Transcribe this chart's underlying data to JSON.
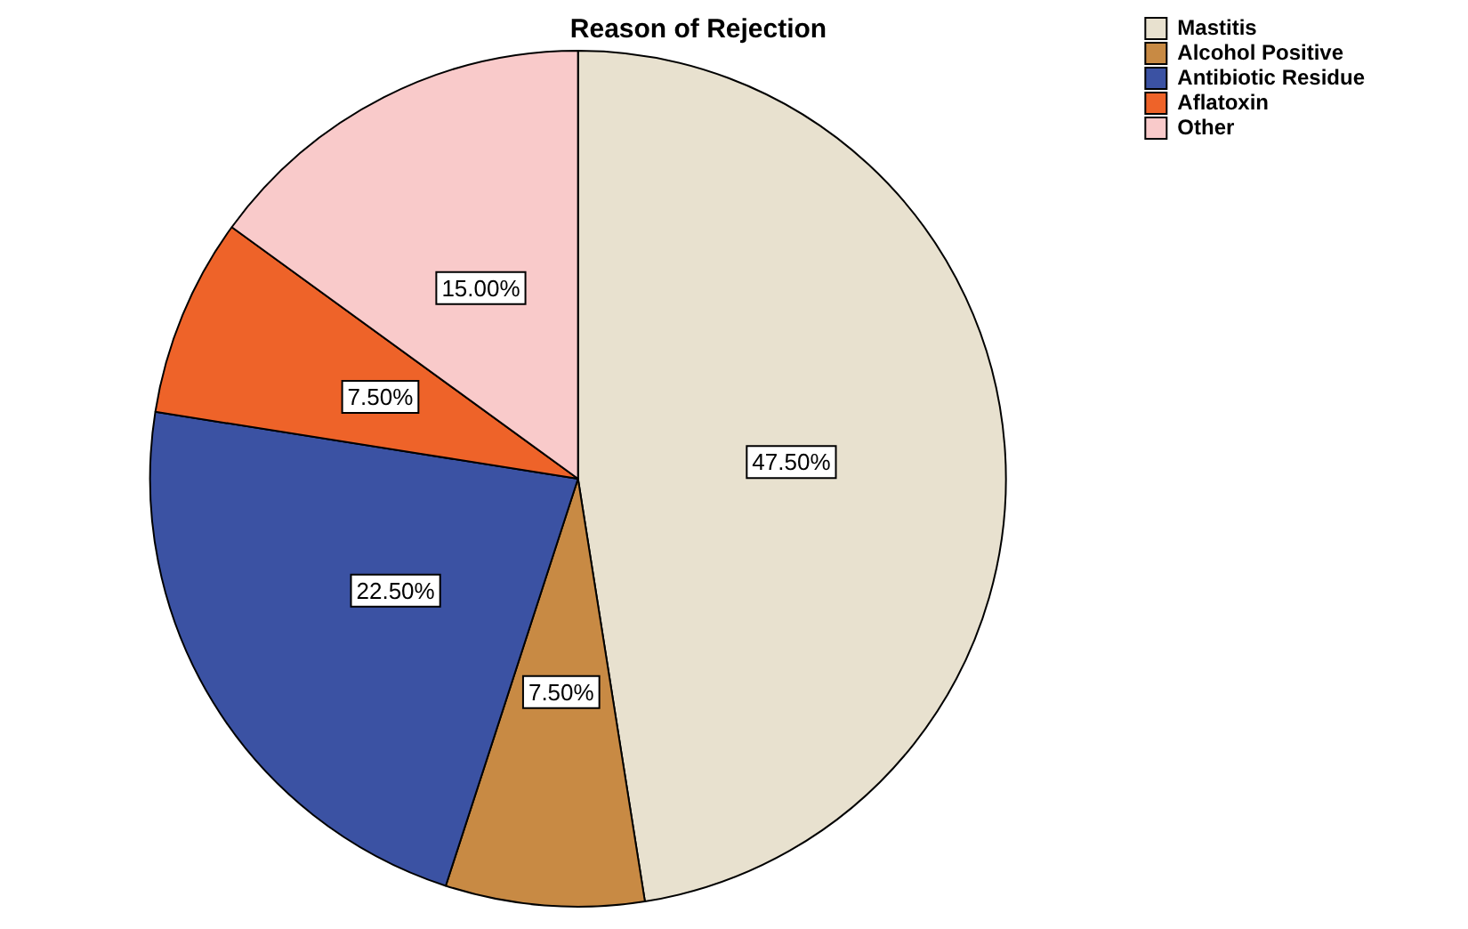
{
  "chart_data": {
    "type": "pie",
    "title": "Reason of Rejection",
    "categories": [
      "Mastitis",
      "Alcohol Positive",
      "Antibiotic Residue",
      "Aflatoxin",
      "Other"
    ],
    "values": [
      47.5,
      7.5,
      22.5,
      7.5,
      15
    ],
    "colors": [
      "#e8e1cf",
      "#c88a44",
      "#3b52a3",
      "#ee6329",
      "#f9caca"
    ],
    "value_labels": [
      "47.50%",
      "7.50%",
      "22.50%",
      "7.50%",
      "15.00%"
    ],
    "legend": "top right"
  }
}
